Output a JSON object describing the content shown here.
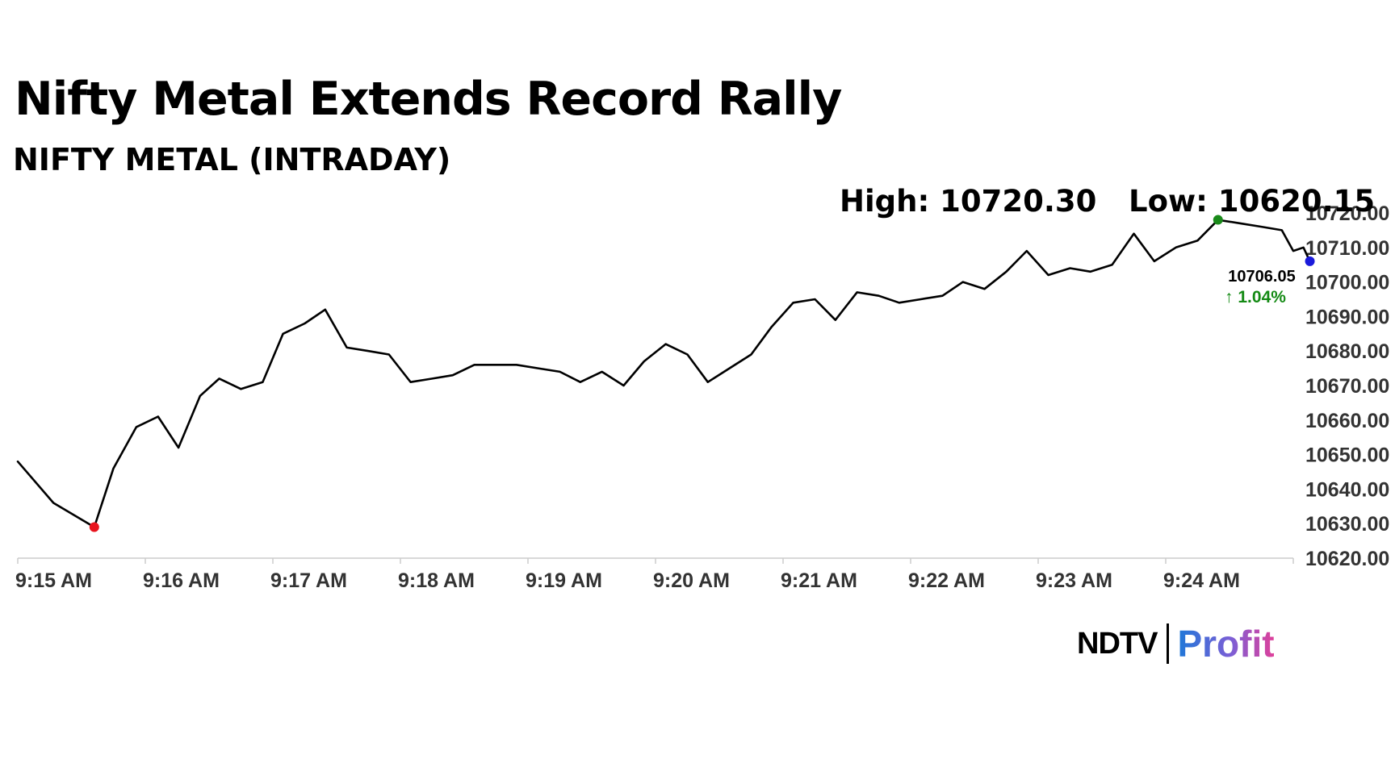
{
  "title": "Nifty Metal Extends Record Rally",
  "subtitle": "NIFTY METAL (INTRADAY)",
  "high_label": "High: 10720.30",
  "low_label": "Low: 10620.15",
  "logo": {
    "brand": "NDTV",
    "product": "Profit"
  },
  "colors": {
    "line": "#000000",
    "high_dot": "#1a8a1a",
    "low_dot": "#e8141e",
    "last_dot": "#1a1adb",
    "change_up": "#148a14",
    "axis": "#cccccc"
  },
  "chart_data": {
    "type": "line",
    "ylim": [
      10620,
      10720
    ],
    "y_tick_labels": [
      "10720.00",
      "10710.00",
      "10700.00",
      "10690.00",
      "10680.00",
      "10670.00",
      "10660.00",
      "10650.00",
      "10640.00",
      "10630.00",
      "10620.00"
    ],
    "x_tick_labels": [
      "9:15 AM",
      "9:16 AM",
      "9:17 AM",
      "9:18 AM",
      "9:19 AM",
      "9:20 AM",
      "9:21 AM",
      "9:22 AM",
      "9:23 AM",
      "9:24 AM"
    ],
    "x_unit": "minutes after 9:15 AM",
    "points": [
      [
        0.0,
        10648
      ],
      [
        0.28,
        10636
      ],
      [
        0.6,
        10629
      ],
      [
        0.75,
        10646
      ],
      [
        0.93,
        10658
      ],
      [
        1.1,
        10661
      ],
      [
        1.26,
        10652
      ],
      [
        1.43,
        10667
      ],
      [
        1.58,
        10672
      ],
      [
        1.75,
        10669
      ],
      [
        1.92,
        10671
      ],
      [
        2.08,
        10685
      ],
      [
        2.25,
        10688
      ],
      [
        2.41,
        10692
      ],
      [
        2.58,
        10681
      ],
      [
        2.75,
        10680
      ],
      [
        2.91,
        10679
      ],
      [
        3.08,
        10671
      ],
      [
        3.25,
        10672
      ],
      [
        3.41,
        10673
      ],
      [
        3.58,
        10676
      ],
      [
        3.75,
        10676
      ],
      [
        3.91,
        10676
      ],
      [
        4.08,
        10675
      ],
      [
        4.25,
        10674
      ],
      [
        4.41,
        10671
      ],
      [
        4.58,
        10674
      ],
      [
        4.75,
        10670
      ],
      [
        4.91,
        10677
      ],
      [
        5.08,
        10682
      ],
      [
        5.25,
        10679
      ],
      [
        5.41,
        10671
      ],
      [
        5.58,
        10675
      ],
      [
        5.75,
        10679
      ],
      [
        5.91,
        10687
      ],
      [
        6.08,
        10694
      ],
      [
        6.25,
        10695
      ],
      [
        6.41,
        10689
      ],
      [
        6.58,
        10697
      ],
      [
        6.75,
        10696
      ],
      [
        6.91,
        10694
      ],
      [
        7.08,
        10695
      ],
      [
        7.25,
        10696
      ],
      [
        7.41,
        10700
      ],
      [
        7.58,
        10698
      ],
      [
        7.75,
        10703
      ],
      [
        7.91,
        10709
      ],
      [
        8.08,
        10702
      ],
      [
        8.25,
        10704
      ],
      [
        8.41,
        10703
      ],
      [
        8.58,
        10705
      ],
      [
        8.75,
        10714
      ],
      [
        8.91,
        10706
      ],
      [
        9.08,
        10710
      ],
      [
        9.25,
        10712
      ],
      [
        9.41,
        10718
      ],
      [
        9.58,
        10717
      ],
      [
        9.75,
        10716
      ],
      [
        9.91,
        10715
      ],
      [
        10.0,
        10709
      ],
      [
        10.08,
        10710
      ],
      [
        10.13,
        10706
      ]
    ],
    "markers": {
      "low": {
        "x": 0.6,
        "y": 10629
      },
      "high": {
        "x": 9.41,
        "y": 10718
      },
      "last": {
        "x": 10.13,
        "y": 10706
      }
    },
    "last_value_label": "10706.05",
    "change_label": "↑ 1.04%"
  }
}
